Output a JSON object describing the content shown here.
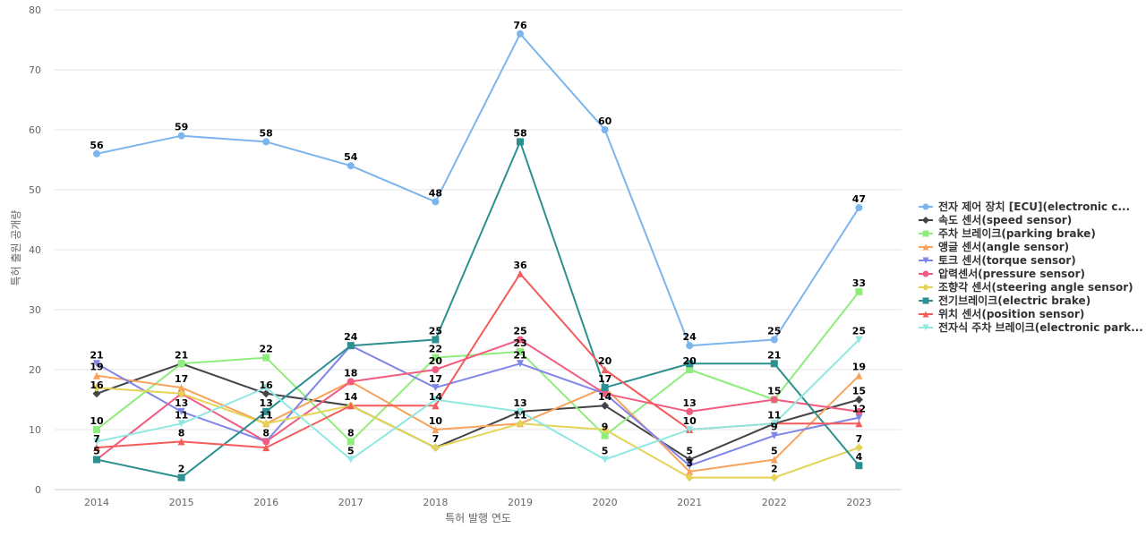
{
  "chart_data": {
    "type": "line",
    "title": "",
    "xlabel": "특허 발행 연도",
    "ylabel": "특허 출원 공개량",
    "x": [
      "2014",
      "2015",
      "2016",
      "2017",
      "2018",
      "2019",
      "2020",
      "2021",
      "2022",
      "2023"
    ],
    "ylim": [
      0,
      80
    ],
    "yticks": [
      "0",
      "10",
      "20",
      "30",
      "40",
      "50",
      "60",
      "70",
      "80"
    ],
    "grid": true,
    "legend_position": "right",
    "series": [
      {
        "name": "전자 제어 장치 [ECU](electronic c...",
        "color": "#7cb5ec",
        "marker": "circle",
        "values": [
          56,
          59,
          58,
          54,
          48,
          76,
          60,
          24,
          25,
          47
        ]
      },
      {
        "name": "속도 센서(speed sensor)",
        "color": "#434348",
        "marker": "diamond",
        "values": [
          16,
          21,
          16,
          14,
          7,
          13,
          14,
          5,
          11,
          15
        ]
      },
      {
        "name": "주차 브레이크(parking brake)",
        "color": "#90ed7d",
        "marker": "square",
        "values": [
          10,
          21,
          22,
          8,
          22,
          23,
          9,
          20,
          15,
          33
        ]
      },
      {
        "name": "앵글 센서(angle sensor)",
        "color": "#f7a35c",
        "marker": "triangle",
        "values": [
          19,
          17,
          11,
          18,
          10,
          11,
          17,
          3,
          5,
          19
        ]
      },
      {
        "name": "토크 센서(torque sensor)",
        "color": "#8085e9",
        "marker": "triangle-down",
        "values": [
          21,
          13,
          8,
          24,
          17,
          21,
          16,
          4,
          9,
          12
        ]
      },
      {
        "name": "압력센서(pressure sensor)",
        "color": "#f15c80",
        "marker": "circle",
        "values": [
          5,
          16,
          8,
          18,
          20,
          25,
          16,
          13,
          15,
          13
        ]
      },
      {
        "name": "조향각 센서(steering angle sensor)",
        "color": "#e4d354",
        "marker": "diamond",
        "values": [
          17,
          16,
          11,
          14,
          7,
          11,
          10,
          2,
          2,
          7
        ]
      },
      {
        "name": "전기브레이크(electric brake)",
        "color": "#2b908f",
        "marker": "square",
        "values": [
          5,
          2,
          13,
          24,
          25,
          58,
          17,
          21,
          21,
          4
        ]
      },
      {
        "name": "위치 센서(position sensor)",
        "color": "#f45b5b",
        "marker": "triangle",
        "values": [
          7,
          8,
          7,
          14,
          14,
          36,
          20,
          10,
          11,
          11
        ]
      },
      {
        "name": "전자식 주차 브레이크(electronic park...",
        "color": "#91e8e1",
        "marker": "triangle-down",
        "values": [
          8,
          11,
          17,
          5,
          15,
          13,
          5,
          10,
          11,
          25
        ]
      }
    ],
    "data_labels": [
      {
        "x": "2014",
        "text": "56",
        "value": 56
      },
      {
        "x": "2015",
        "text": "59",
        "value": 59
      },
      {
        "x": "2016",
        "text": "58",
        "value": 58
      },
      {
        "x": "2017",
        "text": "54",
        "value": 54
      },
      {
        "x": "2018",
        "text": "48",
        "value": 48
      },
      {
        "x": "2019",
        "text": "76",
        "value": 76
      },
      {
        "x": "2020",
        "text": "60",
        "value": 60
      },
      {
        "x": "2021",
        "text": "24",
        "value": 24
      },
      {
        "x": "2022",
        "text": "25",
        "value": 25
      },
      {
        "x": "2023",
        "text": "47",
        "value": 47
      },
      {
        "x": "2014",
        "text": "21",
        "value": 21
      },
      {
        "x": "2014",
        "text": "19",
        "value": 19
      },
      {
        "x": "2014",
        "text": "16",
        "value": 16
      },
      {
        "x": "2014",
        "text": "10",
        "value": 10
      },
      {
        "x": "2014",
        "text": "7",
        "value": 7
      },
      {
        "x": "2014",
        "text": "5",
        "value": 5
      },
      {
        "x": "2015",
        "text": "21",
        "value": 21
      },
      {
        "x": "2015",
        "text": "17",
        "value": 17
      },
      {
        "x": "2015",
        "text": "13",
        "value": 13
      },
      {
        "x": "2015",
        "text": "11",
        "value": 11
      },
      {
        "x": "2015",
        "text": "8",
        "value": 8
      },
      {
        "x": "2015",
        "text": "2",
        "value": 2
      },
      {
        "x": "2016",
        "text": "22",
        "value": 22
      },
      {
        "x": "2016",
        "text": "16",
        "value": 16
      },
      {
        "x": "2016",
        "text": "13",
        "value": 13
      },
      {
        "x": "2016",
        "text": "11",
        "value": 11
      },
      {
        "x": "2016",
        "text": "8",
        "value": 8
      },
      {
        "x": "2017",
        "text": "24",
        "value": 24
      },
      {
        "x": "2017",
        "text": "18",
        "value": 18
      },
      {
        "x": "2017",
        "text": "14",
        "value": 14
      },
      {
        "x": "2017",
        "text": "8",
        "value": 8
      },
      {
        "x": "2017",
        "text": "5",
        "value": 5
      },
      {
        "x": "2018",
        "text": "25",
        "value": 25
      },
      {
        "x": "2018",
        "text": "22",
        "value": 22
      },
      {
        "x": "2018",
        "text": "20",
        "value": 20
      },
      {
        "x": "2018",
        "text": "17",
        "value": 17
      },
      {
        "x": "2018",
        "text": "14",
        "value": 14
      },
      {
        "x": "2018",
        "text": "10",
        "value": 10
      },
      {
        "x": "2018",
        "text": "7",
        "value": 7
      },
      {
        "x": "2019",
        "text": "58",
        "value": 58
      },
      {
        "x": "2019",
        "text": "36",
        "value": 36
      },
      {
        "x": "2019",
        "text": "25",
        "value": 25
      },
      {
        "x": "2019",
        "text": "23",
        "value": 23
      },
      {
        "x": "2019",
        "text": "21",
        "value": 21
      },
      {
        "x": "2019",
        "text": "13",
        "value": 13
      },
      {
        "x": "2019",
        "text": "11",
        "value": 11
      },
      {
        "x": "2020",
        "text": "20",
        "value": 20
      },
      {
        "x": "2020",
        "text": "17",
        "value": 17
      },
      {
        "x": "2020",
        "text": "14",
        "value": 14
      },
      {
        "x": "2020",
        "text": "9",
        "value": 9
      },
      {
        "x": "2020",
        "text": "5",
        "value": 5
      },
      {
        "x": "2021",
        "text": "20",
        "value": 20
      },
      {
        "x": "2021",
        "text": "13",
        "value": 13
      },
      {
        "x": "2021",
        "text": "10",
        "value": 10
      },
      {
        "x": "2021",
        "text": "5",
        "value": 5
      },
      {
        "x": "2021",
        "text": "3",
        "value": 3
      },
      {
        "x": "2022",
        "text": "21",
        "value": 21
      },
      {
        "x": "2022",
        "text": "15",
        "value": 15
      },
      {
        "x": "2022",
        "text": "11",
        "value": 11
      },
      {
        "x": "2022",
        "text": "9",
        "value": 9
      },
      {
        "x": "2022",
        "text": "5",
        "value": 5
      },
      {
        "x": "2022",
        "text": "2",
        "value": 2
      },
      {
        "x": "2023",
        "text": "33",
        "value": 33
      },
      {
        "x": "2023",
        "text": "25",
        "value": 25
      },
      {
        "x": "2023",
        "text": "19",
        "value": 19
      },
      {
        "x": "2023",
        "text": "15",
        "value": 15
      },
      {
        "x": "2023",
        "text": "12",
        "value": 12
      },
      {
        "x": "2023",
        "text": "7",
        "value": 7
      },
      {
        "x": "2023",
        "text": "4",
        "value": 4
      }
    ]
  }
}
